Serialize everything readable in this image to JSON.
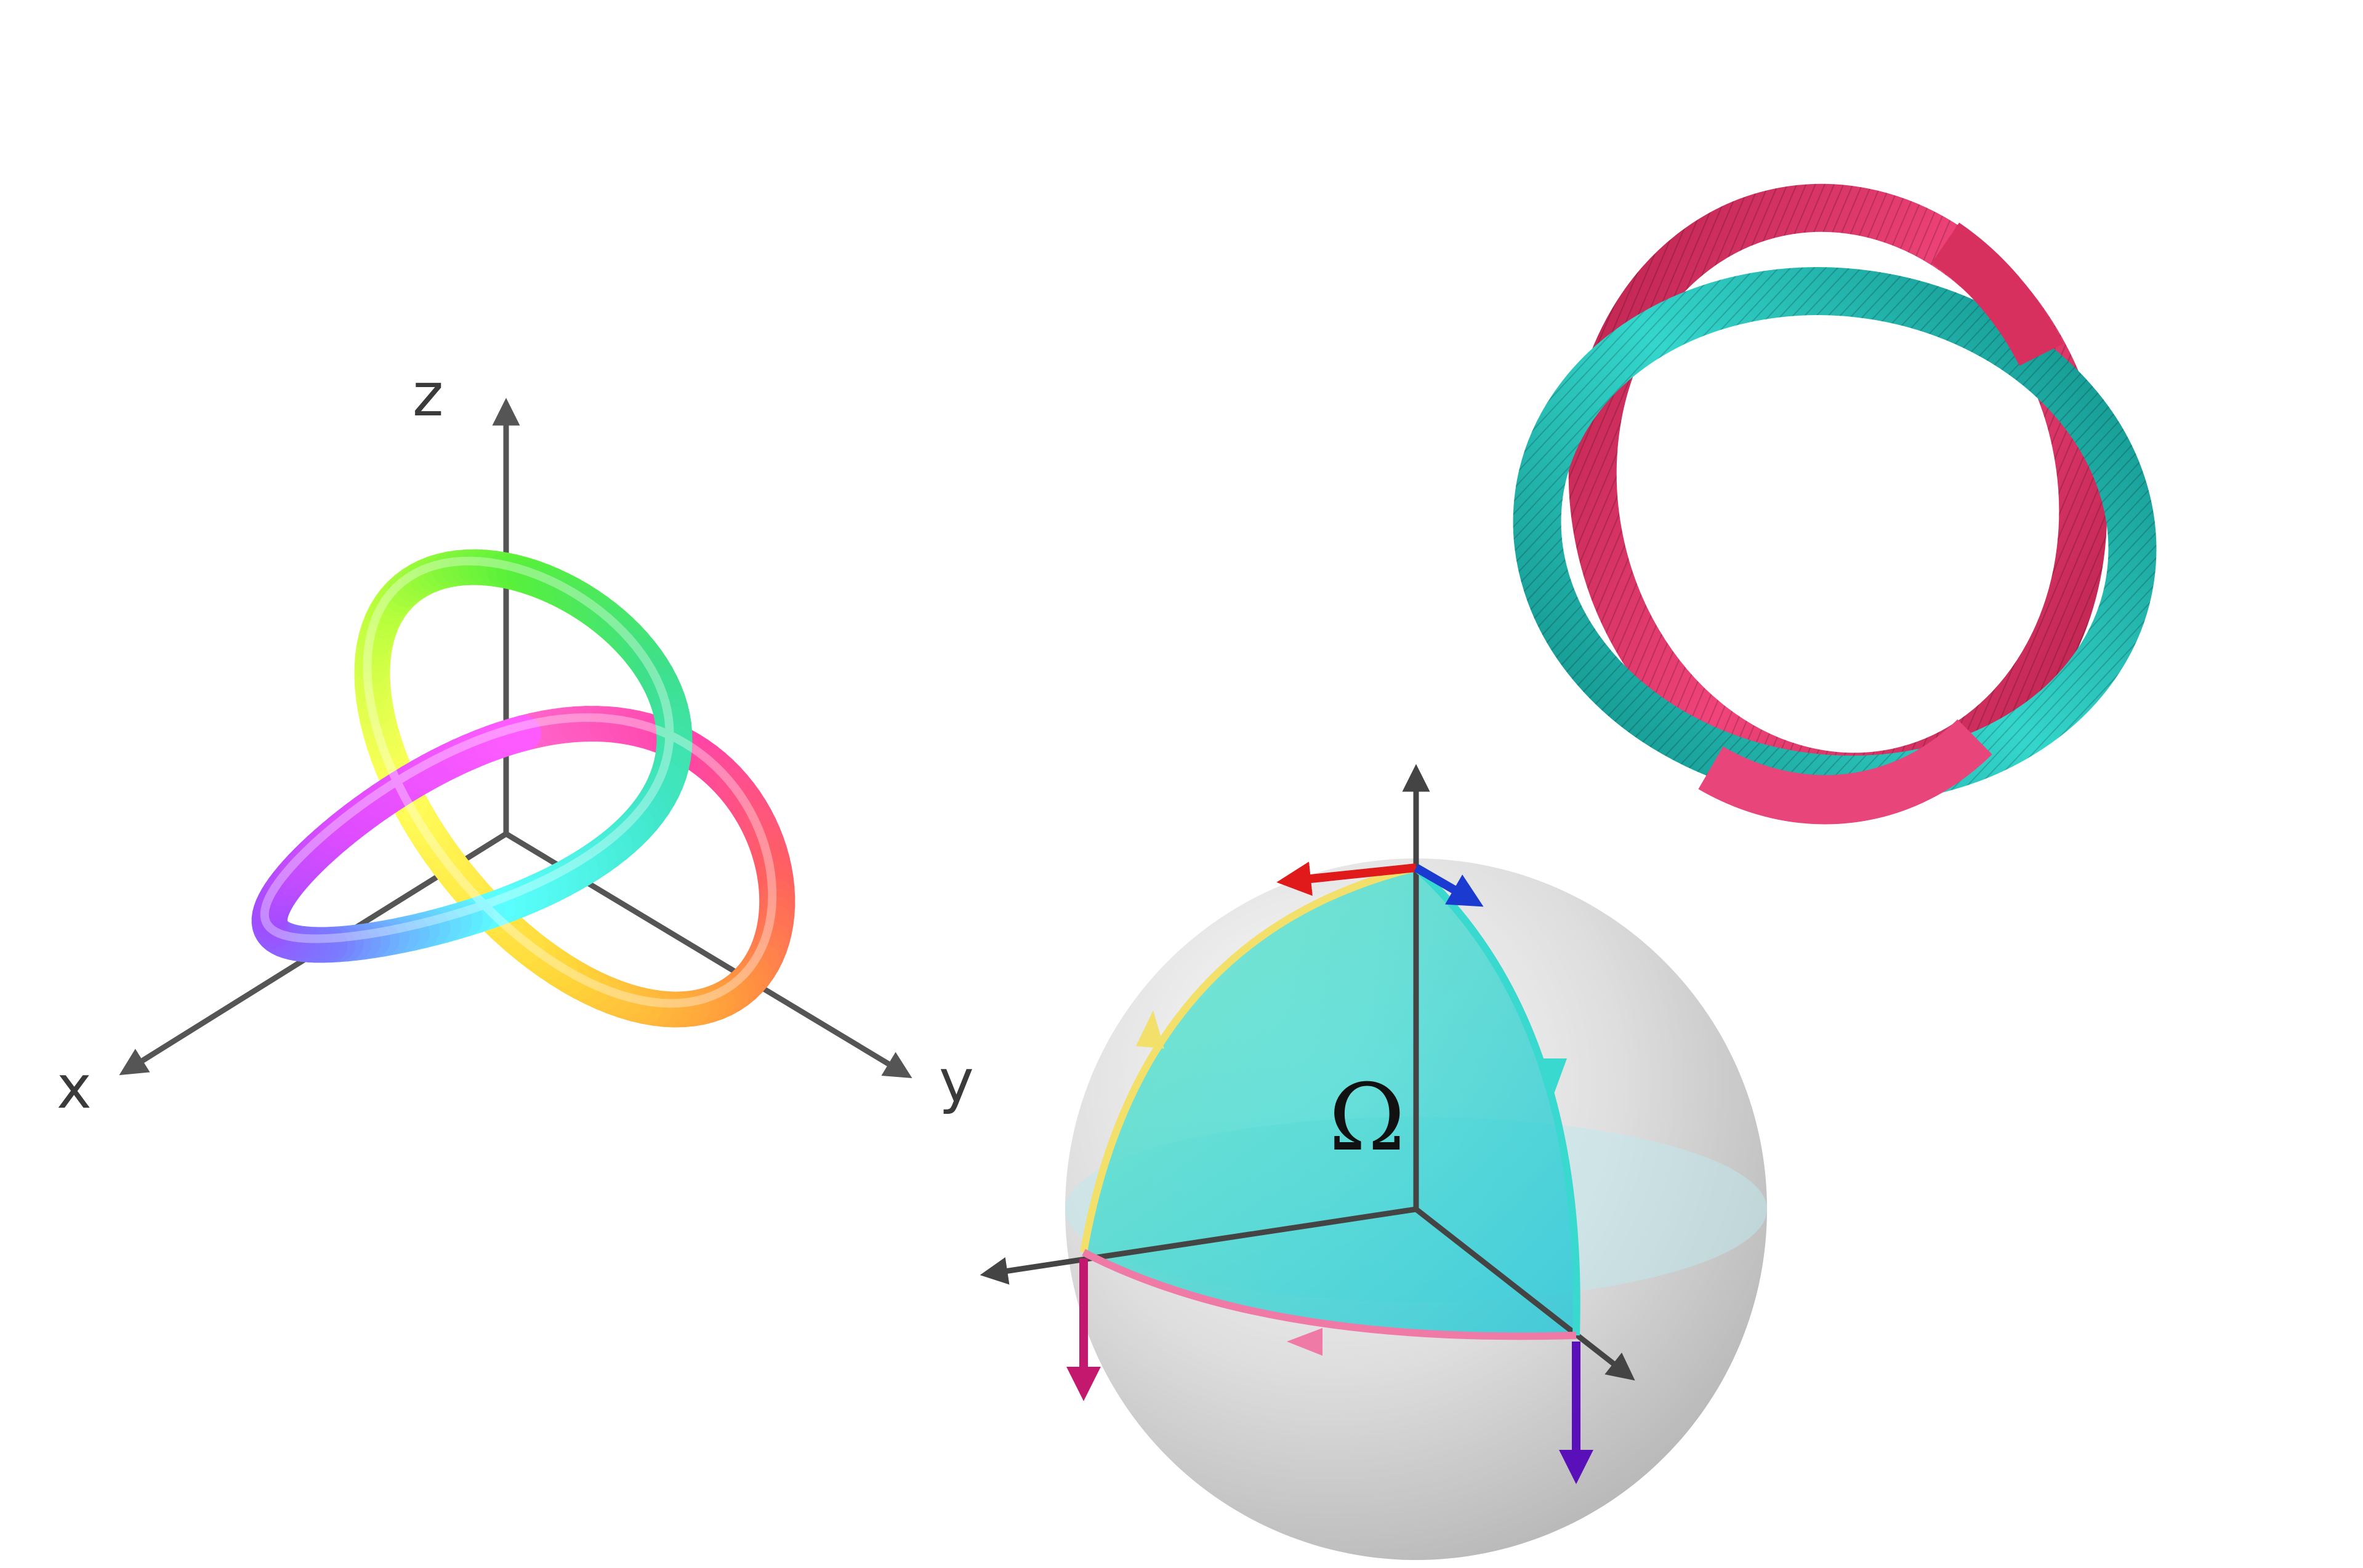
{
  "knot_panel": {
    "axis_labels": {
      "x": "x",
      "y": "y",
      "z": "z"
    },
    "colors": {
      "axis": "#555555",
      "tube_gradient": [
        "#ff66cc",
        "#ff44aa",
        "#ff6060",
        "#ff9a3c",
        "#ffd83a",
        "#ffff5a",
        "#b8ff3c",
        "#58f03a",
        "#3ee08a",
        "#40e6c8",
        "#5affff",
        "#7a7aff",
        "#a04cff",
        "#e04cff",
        "#ff5cff"
      ]
    }
  },
  "sphere_panel": {
    "solid_angle_label": "Ω",
    "colors": {
      "sphere": "#c8c8c8",
      "patch": "#2ccfd0",
      "arc_left": "#f2e06a",
      "arc_right": "#39d9d0",
      "arc_bottom": "#f07aa6",
      "arrow_red": "#e01a1a",
      "arrow_blue": "#1a3ad0",
      "arrow_magenta": "#c4186e",
      "arrow_purple": "#5a10b8",
      "axis": "#444444"
    }
  },
  "ribbon_panel": {
    "colors": {
      "ribbon_a": "#e0386a",
      "ribbon_b": "#1ab5ac"
    }
  }
}
